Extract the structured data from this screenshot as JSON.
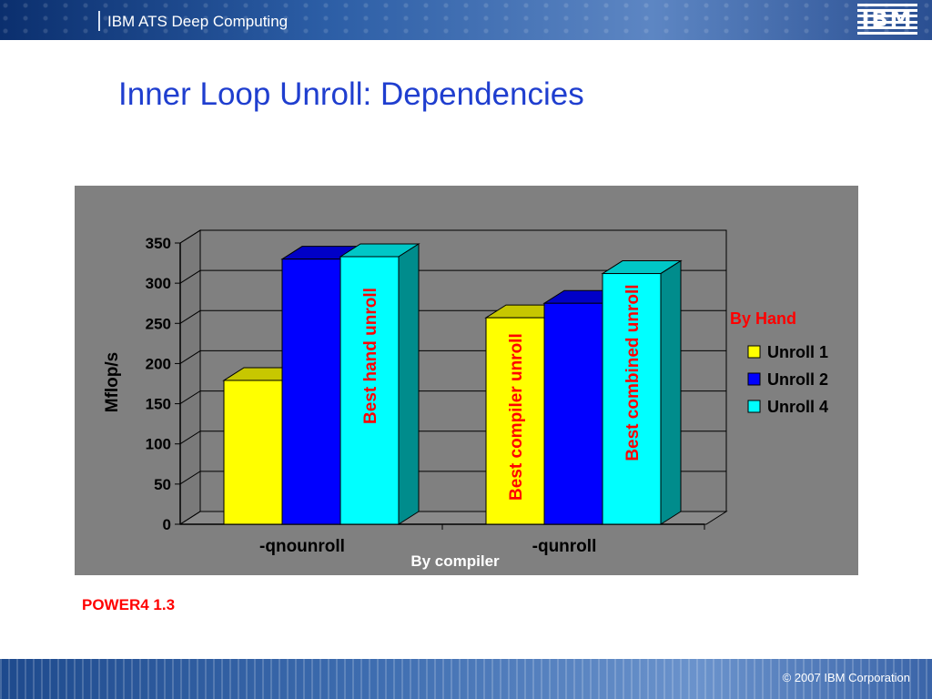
{
  "header": {
    "brand_text": "IBM ATS Deep Computing",
    "logo_text": "IBM"
  },
  "slide": {
    "title": "Inner Loop Unroll: Dependencies",
    "note": "POWER4 1.3"
  },
  "footer": {
    "copyright": "© 2007 IBM Corporation"
  },
  "chart_data": {
    "type": "bar",
    "style": "3d-clustered",
    "categories": [
      "-qnounroll",
      "-qunroll"
    ],
    "series": [
      {
        "name": "Unroll 1",
        "color": "#ffff00",
        "values": [
          179,
          257
        ]
      },
      {
        "name": "Unroll 2",
        "color": "#0000ff",
        "values": [
          330,
          275
        ]
      },
      {
        "name": "Unroll 4",
        "color": "#00ffff",
        "values": [
          333,
          312
        ]
      }
    ],
    "xlabel": "By compiler",
    "ylabel": "Mflop/s",
    "ylim": [
      0,
      350
    ],
    "yticks": [
      0,
      50,
      100,
      150,
      200,
      250,
      300,
      350
    ],
    "grid": true,
    "legend_position": "right",
    "legend_title": "By Hand",
    "annotations": [
      {
        "text": "Best hand unroll",
        "category": "-qnounroll",
        "series": "Unroll 4",
        "color": "#ff0000"
      },
      {
        "text": "Best compiler unroll",
        "category": "-qunroll",
        "series": "Unroll 1",
        "color": "#ff0000"
      },
      {
        "text": "Best combined unroll",
        "category": "-qunroll",
        "series": "Unroll 4",
        "color": "#ff0000"
      }
    ],
    "plot_background": "#808080"
  }
}
